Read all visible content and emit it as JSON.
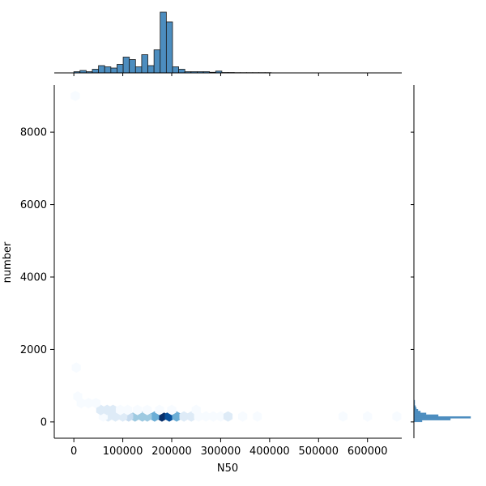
{
  "chart_data": {
    "type": "hexbin",
    "joint_plot": true,
    "xlabel": "N50",
    "ylabel": "number",
    "xlim": [
      -40000,
      670000
    ],
    "ylim": [
      -450,
      9300
    ],
    "x_ticks": [
      0,
      100000,
      200000,
      300000,
      400000,
      500000,
      600000
    ],
    "x_tick_labels": [
      "0",
      "100000",
      "200000",
      "300000",
      "400000",
      "500000",
      "600000"
    ],
    "y_ticks": [
      0,
      2000,
      4000,
      6000,
      8000
    ],
    "y_tick_labels": [
      "0",
      "2000",
      "4000",
      "6000",
      "8000"
    ],
    "colormap": [
      "#f7fbff",
      "#deebf7",
      "#c6dbef",
      "#9ecae1",
      "#6baed6",
      "#4292c6",
      "#2171b5",
      "#08519c",
      "#08306b"
    ],
    "hex_density": [
      {
        "x": 180000,
        "y": 150,
        "density": 1.0
      },
      {
        "x": 195000,
        "y": 150,
        "density": 0.85
      },
      {
        "x": 210000,
        "y": 150,
        "density": 0.45
      },
      {
        "x": 165000,
        "y": 150,
        "density": 0.45
      },
      {
        "x": 150000,
        "y": 150,
        "density": 0.4
      },
      {
        "x": 140000,
        "y": 150,
        "density": 0.35
      },
      {
        "x": 125000,
        "y": 150,
        "density": 0.35
      },
      {
        "x": 112000,
        "y": 150,
        "density": 0.3
      },
      {
        "x": 100000,
        "y": 150,
        "density": 0.18
      },
      {
        "x": 85000,
        "y": 150,
        "density": 0.15
      },
      {
        "x": 70000,
        "y": 150,
        "density": 0.1
      },
      {
        "x": 60000,
        "y": 150,
        "density": 0.06
      },
      {
        "x": 225000,
        "y": 150,
        "density": 0.12
      },
      {
        "x": 240000,
        "y": 150,
        "density": 0.08
      },
      {
        "x": 255000,
        "y": 150,
        "density": 0.06
      },
      {
        "x": 270000,
        "y": 150,
        "density": 0.05
      },
      {
        "x": 285000,
        "y": 150,
        "density": 0.04
      },
      {
        "x": 300000,
        "y": 150,
        "density": 0.06
      },
      {
        "x": 315000,
        "y": 150,
        "density": 0.08
      },
      {
        "x": 345000,
        "y": 150,
        "density": 0.03
      },
      {
        "x": 375000,
        "y": 150,
        "density": 0.02
      },
      {
        "x": 550000,
        "y": 150,
        "density": 0.01
      },
      {
        "x": 600000,
        "y": 150,
        "density": 0.01
      },
      {
        "x": 660000,
        "y": 150,
        "density": 0.01
      },
      {
        "x": 55000,
        "y": 330,
        "density": 0.15
      },
      {
        "x": 68000,
        "y": 330,
        "density": 0.12
      },
      {
        "x": 80000,
        "y": 330,
        "density": 0.08
      },
      {
        "x": 95000,
        "y": 330,
        "density": 0.05
      },
      {
        "x": 110000,
        "y": 330,
        "density": 0.04
      },
      {
        "x": 130000,
        "y": 330,
        "density": 0.03
      },
      {
        "x": 150000,
        "y": 330,
        "density": 0.03
      },
      {
        "x": 175000,
        "y": 330,
        "density": 0.03
      },
      {
        "x": 200000,
        "y": 330,
        "density": 0.02
      },
      {
        "x": 250000,
        "y": 330,
        "density": 0.02
      },
      {
        "x": 15000,
        "y": 520,
        "density": 0.04
      },
      {
        "x": 30000,
        "y": 520,
        "density": 0.03
      },
      {
        "x": 45000,
        "y": 520,
        "density": 0.02
      },
      {
        "x": 8000,
        "y": 700,
        "density": 0.02
      },
      {
        "x": 5000,
        "y": 1500,
        "density": 0.01
      },
      {
        "x": 3000,
        "y": 9000,
        "density": 0.01
      }
    ],
    "x_marginal": {
      "bin_edges": [
        0,
        12600,
        25200,
        37800,
        50400,
        63000,
        75600,
        88200,
        100800,
        113400,
        126000,
        138600,
        151200,
        163800,
        176400,
        189000,
        201600,
        214200,
        226800,
        239400,
        252000,
        264600,
        277200,
        289800,
        302400,
        315000,
        327600,
        340200,
        352800,
        365400,
        378000,
        390600,
        403200,
        415800,
        428400,
        441000,
        453600,
        466200,
        478800,
        491400,
        504000,
        516600,
        529200,
        541800,
        554400,
        567000,
        579600,
        592200,
        604800,
        617400,
        630000
      ],
      "counts": [
        1,
        2,
        1,
        3,
        6,
        5,
        4,
        7,
        13,
        11,
        5,
        15,
        6,
        19,
        50,
        42,
        5,
        3,
        1,
        1,
        1,
        1,
        0.5,
        1.5,
        0.3,
        0.3,
        0.2,
        0.2,
        0.2,
        0.2,
        0.2,
        0.2,
        0,
        0,
        0,
        0,
        0,
        0,
        0,
        0,
        0,
        0,
        0,
        0,
        0,
        0,
        0,
        0,
        0,
        0
      ]
    },
    "y_marginal": {
      "bin_edges": [
        0,
        50,
        100,
        150,
        200,
        250,
        300,
        350,
        400,
        450,
        500,
        550,
        600
      ],
      "counts": [
        10,
        45,
        70,
        30,
        15,
        8,
        5,
        3,
        2,
        1,
        1,
        1
      ]
    },
    "bar_fill": "#4c8dbf",
    "bar_stroke": "#1a1a1a"
  }
}
